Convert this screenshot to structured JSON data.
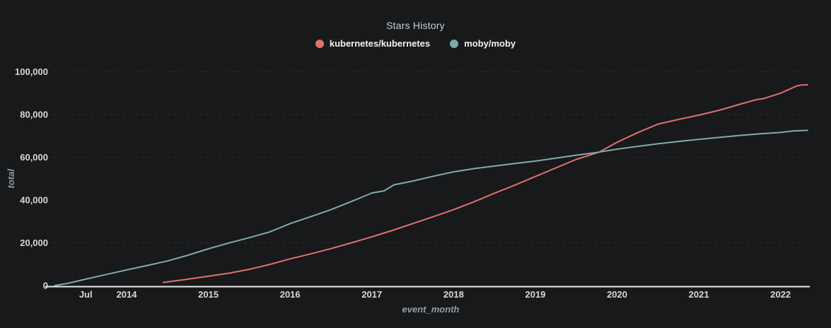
{
  "colors": {
    "background": "#17191b",
    "axis_line": "#e8e8e8",
    "tick_label": "#d6d8da",
    "axis_title": "#979da2",
    "title_text": "#c9cdd1",
    "legend_text": "#f2f3f4",
    "gridline": "rgba(255,255,255,0.08)",
    "kubernetes_line": "#e0716a",
    "moby_line": "#7fabaa"
  },
  "chart_data": {
    "type": "line",
    "title": "Stars History",
    "xlabel": "event_month",
    "ylabel": "total",
    "x_unit": "decimal_year",
    "xlim": [
      2013.1,
      2022.34
    ],
    "ylim": [
      0,
      100000
    ],
    "grid": "horizontal-dashed",
    "legend_position": "top-center",
    "x_ticks": [
      {
        "label": "Jul",
        "year": 2013.5
      },
      {
        "label": "2014",
        "year": 2014
      },
      {
        "label": "2015",
        "year": 2015
      },
      {
        "label": "2016",
        "year": 2016
      },
      {
        "label": "2017",
        "year": 2017
      },
      {
        "label": "2018",
        "year": 2018
      },
      {
        "label": "2019",
        "year": 2019
      },
      {
        "label": "2020",
        "year": 2020
      },
      {
        "label": "2021",
        "year": 2021
      },
      {
        "label": "2022",
        "year": 2022
      }
    ],
    "y_ticks": [
      {
        "label": "0",
        "value": 0
      },
      {
        "label": "20,000",
        "value": 20000
      },
      {
        "label": "40,000",
        "value": 40000
      },
      {
        "label": "60,000",
        "value": 60000
      },
      {
        "label": "80,000",
        "value": 80000
      },
      {
        "label": "100,000",
        "value": 100000
      }
    ],
    "series": [
      {
        "name": "kubernetes/kubernetes",
        "color": "#e0716a",
        "points": [
          [
            2014.45,
            1500
          ],
          [
            2014.6,
            2200
          ],
          [
            2014.75,
            3000
          ],
          [
            2015.0,
            4400
          ],
          [
            2015.25,
            5800
          ],
          [
            2015.5,
            7600
          ],
          [
            2015.75,
            9900
          ],
          [
            2016.0,
            12500
          ],
          [
            2016.25,
            14800
          ],
          [
            2016.5,
            17300
          ],
          [
            2016.75,
            20000
          ],
          [
            2017.0,
            22800
          ],
          [
            2017.25,
            25800
          ],
          [
            2017.5,
            29000
          ],
          [
            2017.75,
            32200
          ],
          [
            2018.0,
            35500
          ],
          [
            2018.25,
            39200
          ],
          [
            2018.5,
            43200
          ],
          [
            2018.75,
            47000
          ],
          [
            2019.0,
            51000
          ],
          [
            2019.25,
            55000
          ],
          [
            2019.5,
            59000
          ],
          [
            2019.78,
            62400
          ],
          [
            2020.0,
            67000
          ],
          [
            2020.25,
            71500
          ],
          [
            2020.5,
            75500
          ],
          [
            2020.75,
            77700
          ],
          [
            2021.0,
            79700
          ],
          [
            2021.25,
            82000
          ],
          [
            2021.5,
            84800
          ],
          [
            2021.71,
            87000
          ],
          [
            2021.79,
            87400
          ],
          [
            2022.0,
            90000
          ],
          [
            2022.2,
            93400
          ],
          [
            2022.25,
            93800
          ],
          [
            2022.33,
            93900
          ]
        ]
      },
      {
        "name": "moby/moby",
        "color": "#7fabaa",
        "points": [
          [
            2013.12,
            0
          ],
          [
            2013.3,
            1200
          ],
          [
            2013.5,
            3000
          ],
          [
            2013.75,
            5200
          ],
          [
            2014.0,
            7300
          ],
          [
            2014.25,
            9400
          ],
          [
            2014.5,
            11500
          ],
          [
            2014.75,
            14200
          ],
          [
            2015.0,
            17200
          ],
          [
            2015.25,
            19900
          ],
          [
            2015.5,
            22400
          ],
          [
            2015.75,
            25100
          ],
          [
            2016.0,
            29000
          ],
          [
            2016.25,
            32200
          ],
          [
            2016.5,
            35500
          ],
          [
            2016.75,
            39300
          ],
          [
            2017.0,
            43300
          ],
          [
            2017.15,
            44300
          ],
          [
            2017.27,
            47100
          ],
          [
            2017.5,
            48900
          ],
          [
            2017.75,
            51100
          ],
          [
            2018.0,
            53200
          ],
          [
            2018.25,
            54700
          ],
          [
            2018.5,
            55900
          ],
          [
            2018.75,
            57100
          ],
          [
            2019.0,
            58200
          ],
          [
            2019.25,
            59600
          ],
          [
            2019.5,
            61000
          ],
          [
            2019.78,
            62400
          ],
          [
            2020.0,
            63800
          ],
          [
            2020.25,
            65100
          ],
          [
            2020.5,
            66300
          ],
          [
            2020.75,
            67400
          ],
          [
            2021.0,
            68400
          ],
          [
            2021.25,
            69300
          ],
          [
            2021.5,
            70200
          ],
          [
            2021.75,
            71000
          ],
          [
            2022.0,
            71600
          ],
          [
            2022.15,
            72300
          ],
          [
            2022.33,
            72600
          ]
        ]
      }
    ]
  }
}
